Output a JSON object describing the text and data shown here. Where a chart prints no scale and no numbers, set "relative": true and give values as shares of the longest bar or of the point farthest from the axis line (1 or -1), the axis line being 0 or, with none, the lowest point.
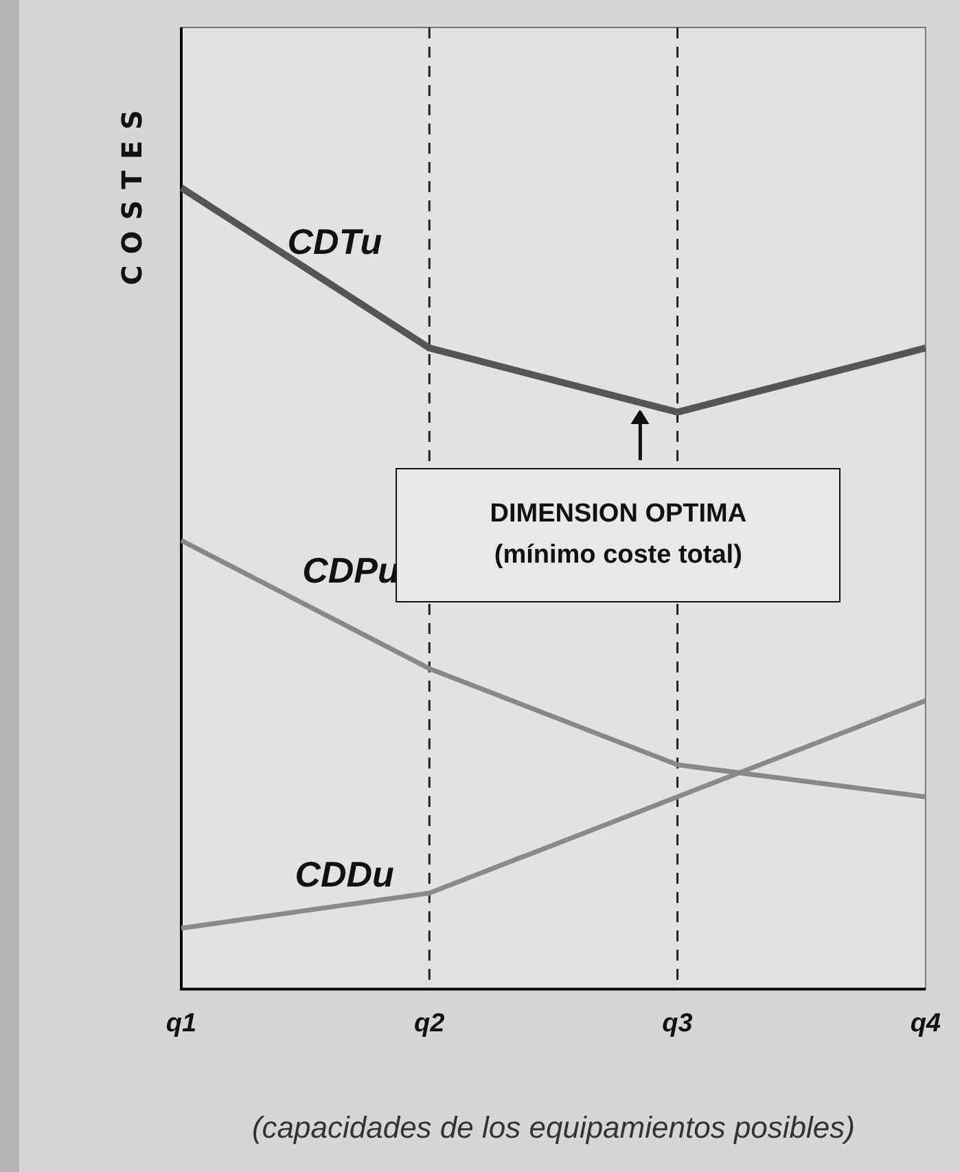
{
  "chart_data": {
    "type": "line",
    "relative": true,
    "ylabel": "COSTES",
    "xlabel": "(capacidades de los equipamientos posibles)",
    "categories": [
      "q1",
      "q2",
      "q3",
      "q4"
    ],
    "series": [
      {
        "name": "CDTu",
        "color": "#555555",
        "values": [
          1,
          0.8,
          0.72,
          0.8
        ]
      },
      {
        "name": "CDPu",
        "color": "#888888",
        "values": [
          0.56,
          0.4,
          0.28,
          0.24
        ]
      },
      {
        "name": "CDDu",
        "color": "#8a8a8a",
        "values": [
          0.076,
          0.12,
          0.24,
          0.36
        ]
      }
    ],
    "ref_lines": [
      {
        "axis": "x",
        "value": "q2",
        "line_style": "dashed",
        "color": "#222222"
      },
      {
        "axis": "x",
        "value": "q3",
        "line_style": "dashed",
        "color": "#222222"
      }
    ],
    "annotations": [
      "DIMENSION OPTIMA\n(mínimo coste total)"
    ],
    "legend": false,
    "marker": "none",
    "line_style": "solid"
  }
}
